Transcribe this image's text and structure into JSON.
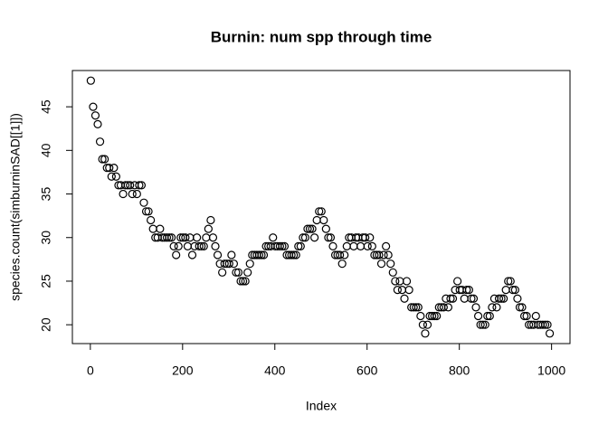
{
  "chart_data": {
    "type": "scatter",
    "title": "Burnin: num spp through time",
    "x_label": "Index",
    "y_label": "species.count(simburninSAD[[1]])",
    "color": "#000000",
    "xlim": [
      -38.96,
      1039.96
    ],
    "ylim": [
      17.84,
      49.16
    ],
    "xticks": [
      0,
      200,
      400,
      600,
      800,
      1000
    ],
    "yticks": [
      20,
      25,
      30,
      35,
      40,
      45
    ],
    "x": [
      1,
      6,
      11,
      16,
      21,
      26,
      31,
      36,
      41,
      46,
      51,
      56,
      61,
      66,
      71,
      76,
      81,
      86,
      91,
      96,
      101,
      106,
      111,
      116,
      121,
      126,
      131,
      136,
      141,
      146,
      151,
      156,
      161,
      166,
      171,
      176,
      181,
      186,
      191,
      196,
      201,
      206,
      211,
      216,
      221,
      226,
      231,
      236,
      241,
      246,
      251,
      256,
      261,
      266,
      271,
      276,
      281,
      286,
      291,
      296,
      301,
      306,
      311,
      316,
      321,
      326,
      331,
      336,
      341,
      346,
      351,
      356,
      361,
      366,
      371,
      376,
      381,
      386,
      391,
      396,
      401,
      406,
      411,
      416,
      421,
      426,
      431,
      436,
      441,
      446,
      451,
      456,
      461,
      466,
      471,
      476,
      481,
      486,
      491,
      496,
      501,
      506,
      511,
      516,
      521,
      526,
      531,
      536,
      541,
      546,
      551,
      556,
      561,
      566,
      571,
      576,
      581,
      586,
      591,
      596,
      601,
      606,
      611,
      616,
      621,
      626,
      631,
      636,
      641,
      646,
      651,
      656,
      661,
      666,
      671,
      676,
      681,
      686,
      691,
      696,
      701,
      706,
      711,
      716,
      721,
      726,
      731,
      736,
      741,
      746,
      751,
      756,
      761,
      766,
      771,
      776,
      781,
      786,
      791,
      796,
      801,
      806,
      811,
      816,
      821,
      826,
      831,
      836,
      841,
      846,
      851,
      856,
      861,
      866,
      871,
      876,
      881,
      886,
      891,
      896,
      901,
      906,
      911,
      916,
      921,
      926,
      931,
      936,
      941,
      946,
      951,
      956,
      961,
      966,
      971,
      976,
      981,
      986,
      991,
      996
    ],
    "values": [
      48,
      45,
      44,
      43,
      41,
      39,
      39,
      38,
      38,
      37,
      38,
      37,
      36,
      36,
      35,
      36,
      36,
      36,
      35,
      36,
      35,
      36,
      36,
      34,
      33,
      33,
      32,
      31,
      30,
      30,
      31,
      30,
      30,
      30,
      30,
      30,
      29,
      28,
      29,
      30,
      30,
      30,
      29,
      30,
      28,
      29,
      30,
      29,
      29,
      29,
      30,
      31,
      32,
      30,
      29,
      28,
      27,
      26,
      27,
      27,
      27,
      28,
      27,
      26,
      26,
      25,
      25,
      25,
      26,
      27,
      28,
      28,
      28,
      28,
      28,
      28,
      29,
      29,
      29,
      30,
      29,
      29,
      29,
      29,
      29,
      28,
      28,
      28,
      28,
      28,
      29,
      29,
      30,
      30,
      31,
      31,
      31,
      30,
      32,
      33,
      33,
      32,
      31,
      30,
      30,
      29,
      28,
      28,
      28,
      27,
      28,
      29,
      30,
      30,
      29,
      30,
      30,
      29,
      30,
      30,
      29,
      30,
      29,
      28,
      28,
      28,
      27,
      28,
      29,
      28,
      27,
      26,
      25,
      24,
      25,
      24,
      23,
      25,
      24,
      22,
      22,
      22,
      22,
      21,
      20,
      19,
      20,
      21,
      21,
      21,
      21,
      22,
      22,
      22,
      23,
      22,
      23,
      23,
      24,
      25,
      24,
      24,
      23,
      24,
      24,
      23,
      23,
      22,
      21,
      20,
      20,
      20,
      21,
      21,
      22,
      23,
      22,
      23,
      23,
      23,
      24,
      25,
      25,
      24,
      24,
      23,
      22,
      22,
      21,
      21,
      20,
      20,
      20,
      21,
      20,
      20,
      20,
      20,
      20,
      19
    ]
  }
}
